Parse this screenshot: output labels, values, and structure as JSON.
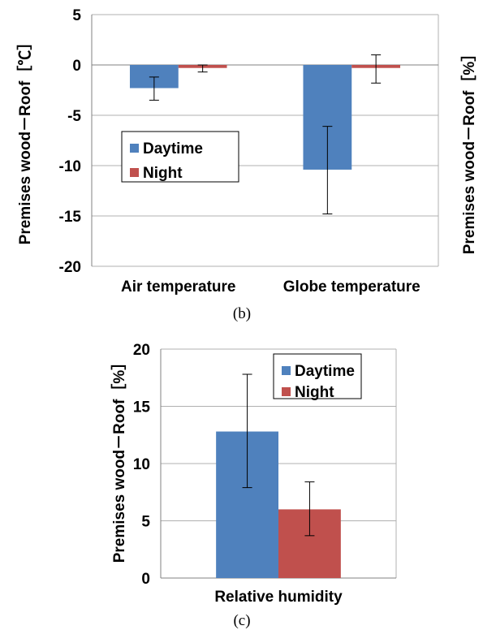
{
  "colors": {
    "daytime": "#4f81bd",
    "night": "#c0504d",
    "grid": "#b0b0b0",
    "axis": "#808080"
  },
  "chart_data": [
    {
      "type": "bar",
      "caption": "(b)",
      "categories": [
        "Air temperature",
        "Globe temperature"
      ],
      "series": [
        {
          "name": "Daytime",
          "values": [
            -2.3,
            -10.4
          ],
          "error_low": [
            -3.5,
            -14.8
          ],
          "error_high": [
            -1.2,
            -6.1
          ]
        },
        {
          "name": "Night",
          "values": [
            -0.3,
            -0.3
          ],
          "error_low": [
            -0.7,
            -1.8
          ],
          "error_high": [
            0.0,
            1.0
          ]
        }
      ],
      "ylabel": "Premises wood－Roof［℃］",
      "ylim": [
        -20,
        5
      ],
      "yticks": [
        "5",
        "0",
        "-5",
        "-10",
        "-15",
        "-20"
      ],
      "grid": true,
      "legend": "inside-left"
    },
    {
      "type": "bar",
      "caption": "(c)",
      "categories": [
        "Relative humidity"
      ],
      "series": [
        {
          "name": "Daytime",
          "values": [
            12.8
          ],
          "error_low": [
            7.9
          ],
          "error_high": [
            17.8
          ]
        },
        {
          "name": "Night",
          "values": [
            6.0
          ],
          "error_low": [
            3.7
          ],
          "error_high": [
            8.4
          ]
        }
      ],
      "ylabel": "Premises wood－Roof［%］",
      "ylim": [
        0,
        20
      ],
      "yticks": [
        "20",
        "15",
        "10",
        "5",
        "0"
      ],
      "grid": true,
      "legend": "top-right"
    }
  ],
  "side_label": "Premises wood－Roof［%］"
}
